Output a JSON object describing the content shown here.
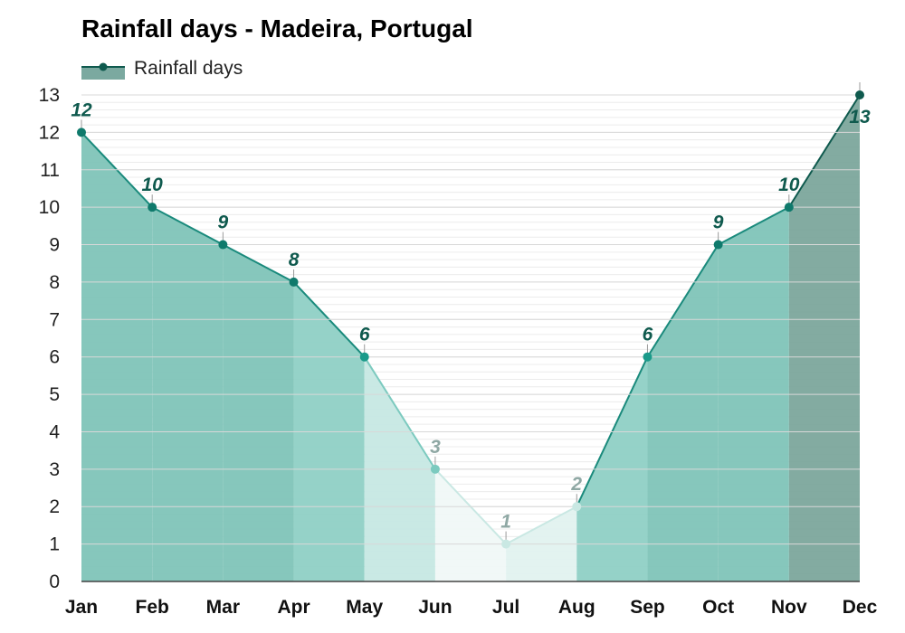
{
  "chart_data": {
    "type": "area",
    "title": "Rainfall days - Madeira, Portugal",
    "categories": [
      "Jan",
      "Feb",
      "Mar",
      "Apr",
      "May",
      "Jun",
      "Jul",
      "Aug",
      "Sep",
      "Oct",
      "Nov",
      "Dec"
    ],
    "series": [
      {
        "name": "Rainfall days",
        "values": [
          12,
          10,
          9,
          8,
          6,
          3,
          1,
          2,
          6,
          9,
          10,
          13
        ]
      }
    ],
    "ylim": [
      0,
      13
    ],
    "yticks": [
      0,
      1,
      2,
      3,
      4,
      5,
      6,
      7,
      8,
      9,
      10,
      11,
      12,
      13
    ],
    "xlabel": "",
    "ylabel": "",
    "grid": true,
    "legend": "top-left",
    "colors": {
      "line": "#1a8a7c",
      "marker_dark": "#0f5a4e",
      "label_dark": "#0f5a4e",
      "label_light": "#8fa8a4"
    }
  }
}
